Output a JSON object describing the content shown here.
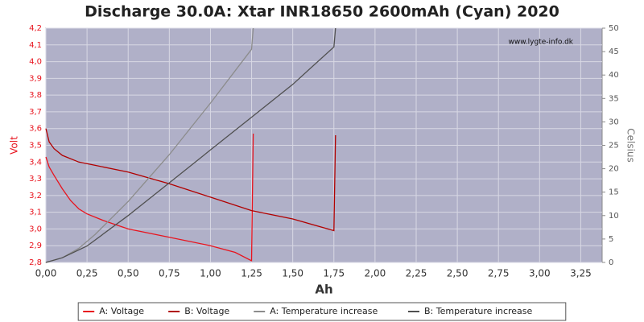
{
  "chart_data": {
    "type": "line",
    "title": "Discharge 30.0A: Xtar INR18650 2600mAh (Cyan) 2020",
    "x_label": "Ah",
    "y_label": "Volt",
    "y2_label": "Celsius",
    "watermark": "www.lygte-info.dk",
    "background": "#b0b0c8",
    "grid": true,
    "xlim": [
      0,
      3.38
    ],
    "xticks": [
      {
        "value": 0,
        "label": "0,00"
      },
      {
        "value": 0.25,
        "label": "0,25"
      },
      {
        "value": 0.5,
        "label": "0,50"
      },
      {
        "value": 0.75,
        "label": "0,75"
      },
      {
        "value": 1,
        "label": "1,00"
      },
      {
        "value": 1.25,
        "label": "1,25"
      },
      {
        "value": 1.5,
        "label": "1,50"
      },
      {
        "value": 1.75,
        "label": "1,75"
      },
      {
        "value": 2,
        "label": "2,00"
      },
      {
        "value": 2.25,
        "label": "2,25"
      },
      {
        "value": 2.5,
        "label": "2,50"
      },
      {
        "value": 2.75,
        "label": "2,75"
      },
      {
        "value": 3,
        "label": "3,00"
      },
      {
        "value": 3.25,
        "label": "3,25"
      }
    ],
    "ylim": [
      2.8,
      4.2
    ],
    "yticks": [
      {
        "value": 2.8,
        "label": "2,8"
      },
      {
        "value": 2.9,
        "label": "2,9"
      },
      {
        "value": 3,
        "label": "3,0"
      },
      {
        "value": 3.1,
        "label": "3,1"
      },
      {
        "value": 3.2,
        "label": "3,2"
      },
      {
        "value": 3.3,
        "label": "3,3"
      },
      {
        "value": 3.4,
        "label": "3,4"
      },
      {
        "value": 3.5,
        "label": "3,5"
      },
      {
        "value": 3.6,
        "label": "3,6"
      },
      {
        "value": 3.7,
        "label": "3,7"
      },
      {
        "value": 3.8,
        "label": "3,8"
      },
      {
        "value": 3.9,
        "label": "3,9"
      },
      {
        "value": 4,
        "label": "4,0"
      },
      {
        "value": 4.1,
        "label": "4,1"
      },
      {
        "value": 4.2,
        "label": "4,2"
      }
    ],
    "y2lim": [
      0,
      50
    ],
    "y2ticks": [
      0,
      5,
      10,
      15,
      20,
      25,
      30,
      35,
      40,
      45,
      50
    ],
    "series": [
      {
        "name": "A: Voltage",
        "color": "#e8141e",
        "axis": "y",
        "x": [
          0,
          0.02,
          0.05,
          0.1,
          0.15,
          0.2,
          0.25,
          0.35,
          0.5,
          0.75,
          1.0,
          1.15,
          1.25,
          1.26
        ],
        "values": [
          3.43,
          3.37,
          3.32,
          3.24,
          3.17,
          3.12,
          3.09,
          3.05,
          3.0,
          2.95,
          2.9,
          2.86,
          2.81,
          3.57
        ]
      },
      {
        "name": "B: Voltage",
        "color": "#b00000",
        "axis": "y",
        "x": [
          0,
          0.02,
          0.05,
          0.1,
          0.2,
          0.3,
          0.5,
          0.75,
          1.0,
          1.25,
          1.5,
          1.75,
          1.76
        ],
        "values": [
          3.6,
          3.52,
          3.48,
          3.44,
          3.4,
          3.38,
          3.34,
          3.27,
          3.19,
          3.11,
          3.06,
          2.99,
          3.56
        ]
      },
      {
        "name": "A: Temperature increase",
        "color": "#8c8c8c",
        "axis": "y2",
        "x": [
          0,
          0.1,
          0.2,
          0.3,
          0.5,
          0.75,
          1.0,
          1.25,
          1.26
        ],
        "values": [
          0,
          1,
          3,
          6,
          13,
          23,
          34,
          45.5,
          50
        ]
      },
      {
        "name": "B: Temperature increase",
        "color": "#505050",
        "axis": "y2",
        "x": [
          0,
          0.1,
          0.25,
          0.5,
          0.75,
          1.0,
          1.25,
          1.5,
          1.75,
          1.76
        ],
        "values": [
          0,
          1,
          3.5,
          10,
          17,
          24,
          31,
          38,
          46,
          50
        ]
      }
    ],
    "legend": "bottom"
  }
}
